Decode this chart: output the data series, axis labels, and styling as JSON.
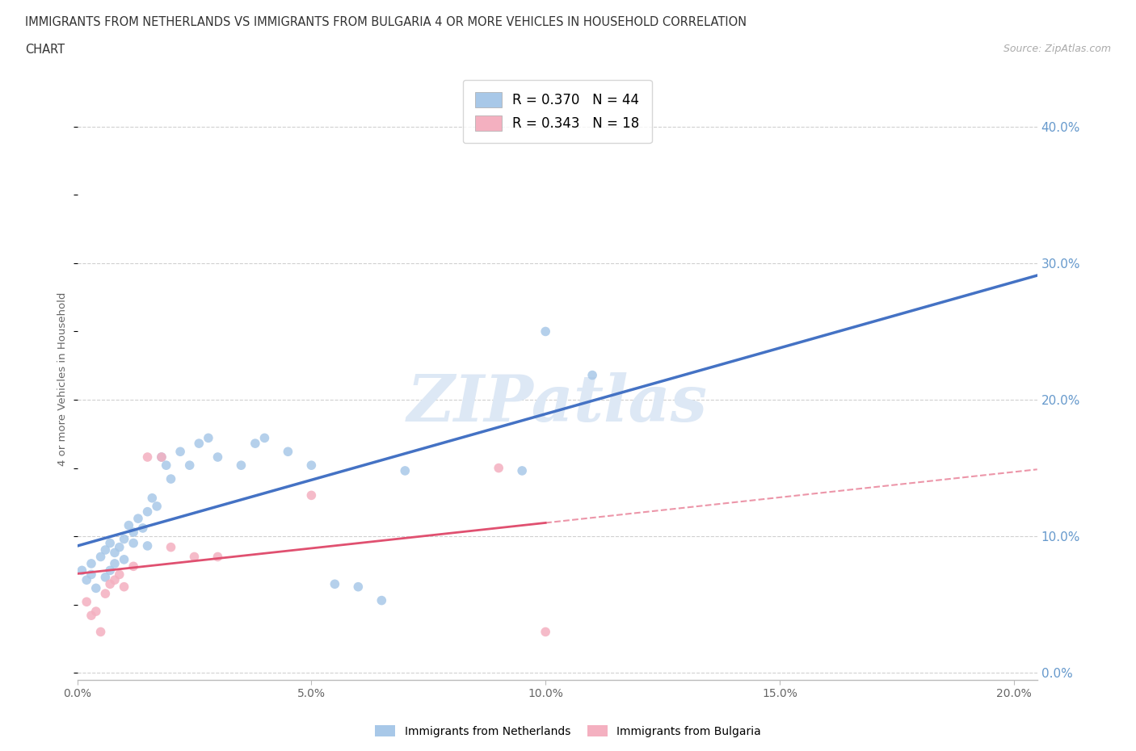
{
  "title_line1": "IMMIGRANTS FROM NETHERLANDS VS IMMIGRANTS FROM BULGARIA 4 OR MORE VEHICLES IN HOUSEHOLD CORRELATION",
  "title_line2": "CHART",
  "source": "Source: ZipAtlas.com",
  "ylabel": "4 or more Vehicles in Household",
  "xlim": [
    0.0,
    0.205
  ],
  "ylim": [
    -0.005,
    0.435
  ],
  "ytick_vals": [
    0.0,
    0.1,
    0.2,
    0.3,
    0.4
  ],
  "xtick_vals": [
    0.0,
    0.05,
    0.1,
    0.15,
    0.2
  ],
  "netherlands": {
    "label": "Immigrants from Netherlands",
    "R": 0.37,
    "N": 44,
    "dot_color": "#a8c8e8",
    "line_color": "#4472c4",
    "x": [
      0.001,
      0.002,
      0.003,
      0.003,
      0.004,
      0.005,
      0.006,
      0.006,
      0.007,
      0.007,
      0.008,
      0.008,
      0.009,
      0.01,
      0.01,
      0.011,
      0.012,
      0.012,
      0.013,
      0.014,
      0.015,
      0.015,
      0.016,
      0.017,
      0.018,
      0.019,
      0.02,
      0.022,
      0.024,
      0.026,
      0.028,
      0.03,
      0.035,
      0.038,
      0.04,
      0.045,
      0.05,
      0.055,
      0.06,
      0.065,
      0.07,
      0.095,
      0.1,
      0.11
    ],
    "y": [
      0.075,
      0.068,
      0.08,
      0.072,
      0.062,
      0.085,
      0.09,
      0.07,
      0.095,
      0.075,
      0.088,
      0.08,
      0.092,
      0.098,
      0.083,
      0.108,
      0.103,
      0.095,
      0.113,
      0.106,
      0.118,
      0.093,
      0.128,
      0.122,
      0.158,
      0.152,
      0.142,
      0.162,
      0.152,
      0.168,
      0.172,
      0.158,
      0.152,
      0.168,
      0.172,
      0.162,
      0.152,
      0.065,
      0.063,
      0.053,
      0.148,
      0.148,
      0.25,
      0.218
    ]
  },
  "bulgaria": {
    "label": "Immigrants from Bulgaria",
    "R": 0.343,
    "N": 18,
    "dot_color": "#f4b0c0",
    "line_color": "#e05070",
    "x": [
      0.002,
      0.003,
      0.004,
      0.005,
      0.006,
      0.007,
      0.008,
      0.009,
      0.01,
      0.012,
      0.015,
      0.018,
      0.02,
      0.025,
      0.03,
      0.05,
      0.09,
      0.1
    ],
    "y": [
      0.052,
      0.042,
      0.045,
      0.03,
      0.058,
      0.065,
      0.068,
      0.072,
      0.063,
      0.078,
      0.158,
      0.158,
      0.092,
      0.085,
      0.085,
      0.13,
      0.15,
      0.03
    ]
  },
  "watermark": "ZIPatlas",
  "watermark_color": "#dde8f5",
  "bg_color": "#ffffff",
  "grid_color": "#d0d0d0",
  "axis_color": "#bbbbbb",
  "tick_label_color": "#666666",
  "right_tick_color": "#6699cc",
  "title_color": "#333333"
}
